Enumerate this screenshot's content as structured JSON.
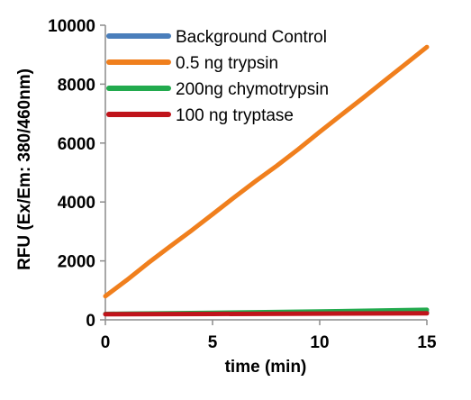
{
  "chart_data": {
    "type": "line",
    "xlabel": "time (min)",
    "ylabel": "RFU (Ex/Em: 380/460nm)",
    "xlim": [
      0,
      15
    ],
    "ylim": [
      0,
      10000
    ],
    "xticks": [
      0,
      5,
      10,
      15
    ],
    "yticks": [
      0,
      2000,
      4000,
      6000,
      8000,
      10000
    ],
    "grid": false,
    "legend_position": "top-left",
    "series": [
      {
        "name": "Background Control",
        "color": "#4a7ebb",
        "x": [
          0,
          5,
          10,
          15
        ],
        "y": [
          200,
          220,
          240,
          260
        ]
      },
      {
        "name": "0.5 ng trypsin",
        "color": "#f07f1d",
        "x": [
          0,
          1,
          2,
          3,
          4,
          5,
          6,
          7,
          8,
          9,
          10,
          11,
          12,
          13,
          14,
          15
        ],
        "y": [
          800,
          1350,
          1930,
          2480,
          3020,
          3580,
          4150,
          4700,
          5230,
          5790,
          6380,
          6950,
          7520,
          8100,
          8680,
          9260
        ]
      },
      {
        "name": "200ng chymotrypsin",
        "color": "#22aa4e",
        "x": [
          0,
          5,
          10,
          15
        ],
        "y": [
          200,
          240,
          280,
          340
        ]
      },
      {
        "name": "100 ng tryptase",
        "color": "#c0141b",
        "x": [
          0,
          5,
          10,
          15
        ],
        "y": [
          190,
          200,
          210,
          220
        ]
      }
    ]
  }
}
